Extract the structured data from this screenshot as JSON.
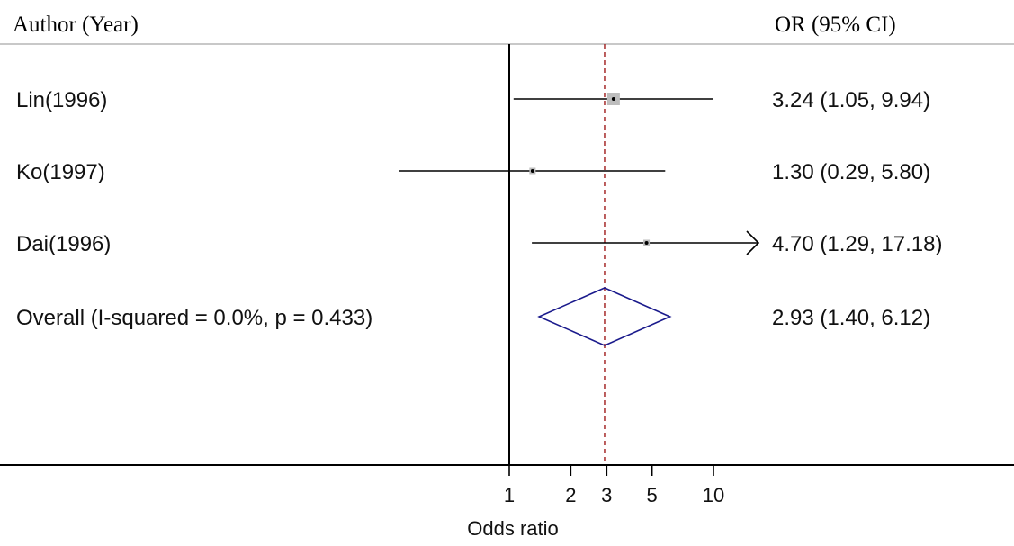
{
  "header": {
    "left": "Author (Year)",
    "right": "OR (95% CI)"
  },
  "chart_data": {
    "type": "forest",
    "xlabel": "Odds ratio",
    "x_scale": "log",
    "x_ticks": [
      1,
      2,
      3,
      5,
      10
    ],
    "x_tick_labels": [
      "1",
      "2",
      "3",
      "5",
      "10"
    ],
    "null_line": 1,
    "pooled_line": 2.93,
    "studies": [
      {
        "label": "Lin(1996)",
        "or": 3.24,
        "lo": 1.05,
        "hi": 9.94,
        "text": "3.24 (1.05, 9.94)",
        "weight": "large"
      },
      {
        "label": "Ko(1997)",
        "or": 1.3,
        "lo": 0.29,
        "hi": 5.8,
        "text": "1.30 (0.29, 5.80)",
        "weight": "small"
      },
      {
        "label": "Dai(1996)",
        "or": 4.7,
        "lo": 1.29,
        "hi": 17.18,
        "text": "4.70 (1.29, 17.18)",
        "weight": "small"
      }
    ],
    "overall": {
      "label": "Overall  (I-squared = 0.0%, p = 0.433)",
      "or": 2.93,
      "lo": 1.4,
      "hi": 6.12,
      "text": "2.93 (1.40, 6.12)"
    },
    "colors": {
      "diamond": "#1a1a8c",
      "pooled_line": "#a52a2a",
      "lines": "#000000",
      "box": "#bdbdbd",
      "header_rule": "#c8c8c8"
    }
  }
}
